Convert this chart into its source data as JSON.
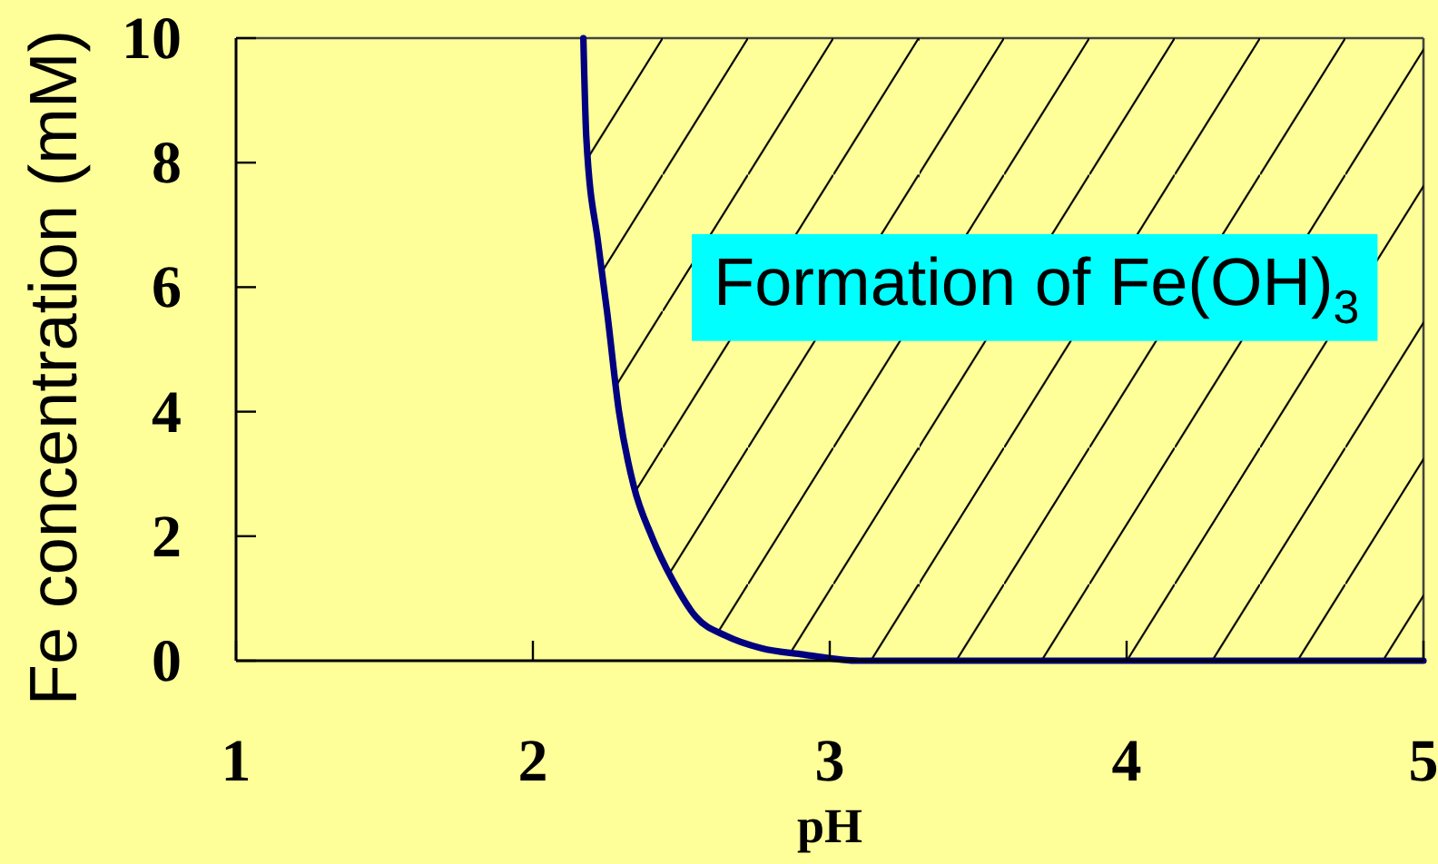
{
  "chart_data": {
    "type": "line",
    "xlabel": "pH",
    "ylabel": "Fe concentration (mM)",
    "annotations": [
      "Formation of Fe(OH)$_{3}$"
    ],
    "x": [
      2.17,
      2.18,
      2.22,
      2.25,
      2.29,
      2.34,
      2.4,
      2.47,
      2.55,
      2.65,
      2.77,
      2.91,
      3.1,
      5
    ],
    "series": [
      {
        "color": "#000080",
        "values": [
          10,
          8.4,
          6.7,
          5.6,
          4.0,
          2.8,
          2.0,
          1.3,
          0.7,
          0.4,
          0.2,
          0.1,
          0,
          0
        ],
        "lower": [
          10,
          8.4,
          6.7,
          5.6,
          4.0,
          2.8,
          2.0,
          1.3,
          0.7,
          0.4,
          0.2,
          0.1,
          0,
          0
        ],
        "upper": [
          10,
          10,
          10,
          10,
          10,
          10,
          10,
          10,
          10,
          10,
          10,
          10,
          10,
          10
        ]
      }
    ],
    "xlim": [
      1,
      5
    ],
    "ylim": [
      0,
      10
    ],
    "xticks": [
      1,
      2,
      3,
      4,
      5
    ],
    "yticks": [
      0,
      2,
      4,
      6,
      8,
      10
    ]
  }
}
